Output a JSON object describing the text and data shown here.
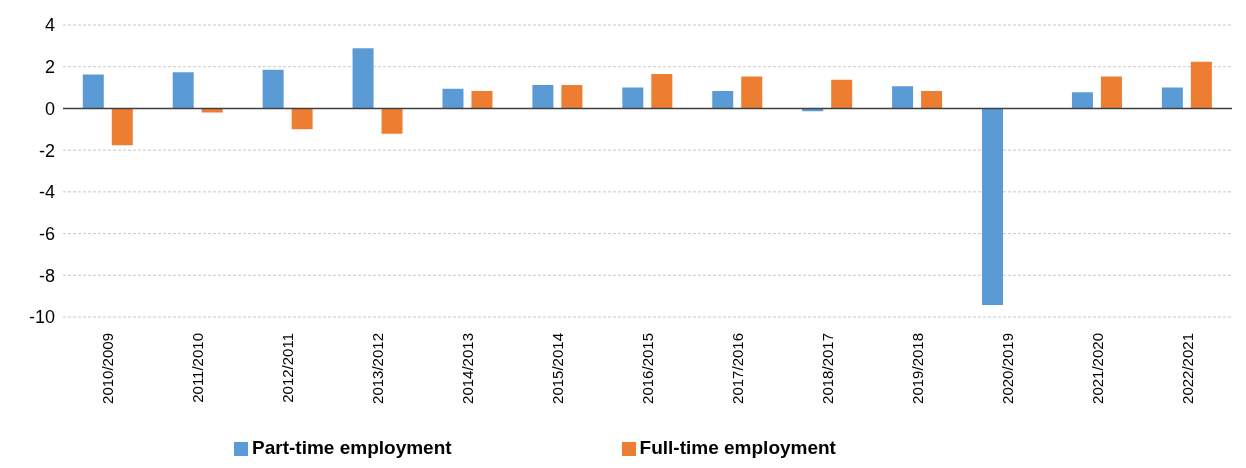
{
  "chart_data": {
    "type": "bar",
    "categories": [
      "2010/2009",
      "2011/2010",
      "2012/2011",
      "2013/2012",
      "2014/2013",
      "2015/2014",
      "2016/2015",
      "2017/2016",
      "2018/2017",
      "2019/2018",
      "2020/2019",
      "2021/2020",
      "2022/2021"
    ],
    "series": [
      {
        "name": "Part-time employment",
        "color": "#5b9bd5",
        "values": [
          1.63,
          1.73,
          1.86,
          2.88,
          0.94,
          1.12,
          1.0,
          0.84,
          -0.14,
          1.06,
          -9.42,
          0.78,
          1.0
        ]
      },
      {
        "name": "Full-time employment",
        "color": "#ed7d31",
        "values": [
          -1.76,
          -0.2,
          -1.0,
          -1.22,
          0.84,
          1.12,
          1.65,
          1.53,
          1.37,
          0.84,
          0,
          1.53,
          2.24
        ]
      }
    ],
    "ylim": [
      -10,
      4
    ],
    "yticks": [
      -10,
      -8,
      -6,
      -4,
      -2,
      0,
      2,
      4
    ],
    "grid": "y",
    "legend": "bottom"
  }
}
